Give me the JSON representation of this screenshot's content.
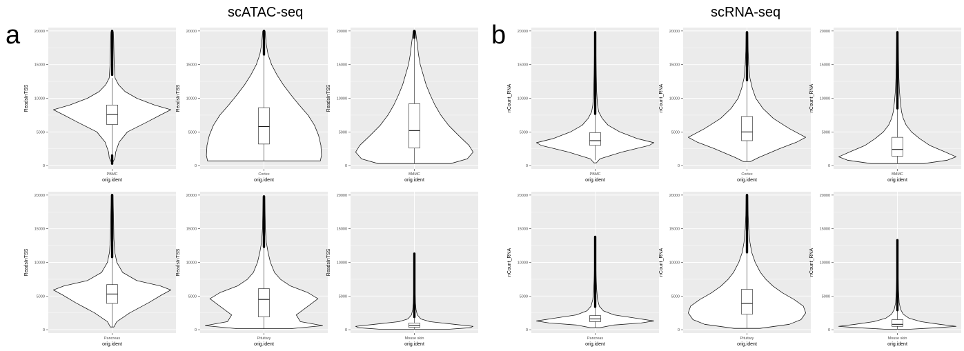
{
  "panels": [
    {
      "letter": "a",
      "title": "scATAC-seq"
    },
    {
      "letter": "b",
      "title": "scRNA-seq"
    }
  ],
  "colors": {
    "panel_bg": "#ebebeb",
    "grid": "#ffffff",
    "violin_fill": "#ffffff",
    "outline": "#1a1a1a",
    "text": "#4d4d4d"
  },
  "chart_data": [
    {
      "type": "violin",
      "panel": "a",
      "xlabel": "orig.ident",
      "ylabel": "ReadsInTSS",
      "categories": [
        "PBMC"
      ],
      "yticks": [
        0,
        5000,
        10000,
        15000,
        20000
      ],
      "ylim": [
        -500,
        20500
      ],
      "box": {
        "q1": 6100,
        "median": 7600,
        "q3": 9000,
        "whisker_low": 1700,
        "whisker_high": 13000
      },
      "density": [
        [
          600,
          0.02
        ],
        [
          1200,
          0.05
        ],
        [
          2000,
          0.06
        ],
        [
          3500,
          0.12
        ],
        [
          5000,
          0.26
        ],
        [
          6500,
          0.6
        ],
        [
          7500,
          0.82
        ],
        [
          8300,
          1.0
        ],
        [
          9000,
          0.72
        ],
        [
          10000,
          0.42
        ],
        [
          11000,
          0.22
        ],
        [
          12000,
          0.11
        ],
        [
          13000,
          0.05
        ],
        [
          15000,
          0.035
        ],
        [
          17000,
          0.03
        ],
        [
          19000,
          0.025
        ],
        [
          19900,
          0.02
        ]
      ],
      "outliers": [
        [
          13500,
          20000
        ],
        [
          300,
          1500
        ]
      ]
    },
    {
      "type": "violin",
      "panel": "a",
      "xlabel": "orig.ident",
      "ylabel": "ReadsInTSS",
      "categories": [
        "Cortex"
      ],
      "yticks": [
        0,
        5000,
        10000,
        15000,
        20000
      ],
      "ylim": [
        -500,
        20500
      ],
      "box": {
        "q1": 3200,
        "median": 5800,
        "q3": 8600,
        "whisker_low": 700,
        "whisker_high": 16500
      },
      "density": [
        [
          700,
          0.96
        ],
        [
          1500,
          0.98
        ],
        [
          3000,
          0.97
        ],
        [
          4500,
          0.93
        ],
        [
          6000,
          0.86
        ],
        [
          7500,
          0.75
        ],
        [
          9000,
          0.6
        ],
        [
          10500,
          0.46
        ],
        [
          12000,
          0.33
        ],
        [
          13500,
          0.22
        ],
        [
          15000,
          0.13
        ],
        [
          16500,
          0.07
        ],
        [
          18000,
          0.04
        ],
        [
          20000,
          0.02
        ]
      ],
      "outliers": [
        [
          16500,
          20000
        ]
      ]
    },
    {
      "type": "violin",
      "panel": "a",
      "xlabel": "orig.ident",
      "ylabel": "ReadsInTSS",
      "categories": [
        "BMMC"
      ],
      "yticks": [
        0,
        5000,
        10000,
        15000,
        20000
      ],
      "ylim": [
        -500,
        20500
      ],
      "box": {
        "q1": 2600,
        "median": 5200,
        "q3": 9200,
        "whisker_low": 300,
        "whisker_high": 19000
      },
      "density": [
        [
          300,
          0.62
        ],
        [
          1000,
          0.9
        ],
        [
          2000,
          1.0
        ],
        [
          3000,
          0.93
        ],
        [
          4500,
          0.75
        ],
        [
          6000,
          0.58
        ],
        [
          7500,
          0.45
        ],
        [
          9000,
          0.35
        ],
        [
          10500,
          0.27
        ],
        [
          12000,
          0.2
        ],
        [
          13500,
          0.15
        ],
        [
          15000,
          0.1
        ],
        [
          16500,
          0.07
        ],
        [
          18000,
          0.05
        ],
        [
          19000,
          0.035
        ],
        [
          20000,
          0.02
        ]
      ],
      "outliers": [
        [
          19000,
          20000
        ]
      ]
    },
    {
      "type": "violin",
      "panel": "b",
      "xlabel": "orig.ident",
      "ylabel": "nCount_RNA",
      "categories": [
        "PBMC"
      ],
      "yticks": [
        0,
        5000,
        10000,
        15000,
        20000
      ],
      "ylim": [
        -500,
        20500
      ],
      "box": {
        "q1": 3000,
        "median": 3700,
        "q3": 4900,
        "whisker_low": 800,
        "whisker_high": 7700
      },
      "density": [
        [
          400,
          0.02
        ],
        [
          1000,
          0.08
        ],
        [
          2000,
          0.45
        ],
        [
          3000,
          0.92
        ],
        [
          3400,
          1.0
        ],
        [
          4000,
          0.72
        ],
        [
          5000,
          0.42
        ],
        [
          6000,
          0.22
        ],
        [
          7000,
          0.12
        ],
        [
          8000,
          0.06
        ],
        [
          9000,
          0.04
        ],
        [
          11000,
          0.025
        ],
        [
          13000,
          0.02
        ],
        [
          15000,
          0.015
        ],
        [
          17000,
          0.012
        ],
        [
          19800,
          0.01
        ]
      ],
      "outliers": [
        [
          7700,
          19800
        ]
      ]
    },
    {
      "type": "violin",
      "panel": "b",
      "xlabel": "orig.ident",
      "ylabel": "nCount_RNA",
      "categories": [
        "Cortex"
      ],
      "yticks": [
        0,
        5000,
        10000,
        15000,
        20000
      ],
      "ylim": [
        -500,
        20500
      ],
      "box": {
        "q1": 3700,
        "median": 5000,
        "q3": 7300,
        "whisker_low": 600,
        "whisker_high": 12700
      },
      "density": [
        [
          600,
          0.06
        ],
        [
          1200,
          0.2
        ],
        [
          2500,
          0.55
        ],
        [
          3500,
          0.85
        ],
        [
          4200,
          1.0
        ],
        [
          5500,
          0.72
        ],
        [
          7000,
          0.45
        ],
        [
          8500,
          0.27
        ],
        [
          10000,
          0.15
        ],
        [
          11500,
          0.09
        ],
        [
          13000,
          0.05
        ],
        [
          15000,
          0.03
        ],
        [
          17000,
          0.02
        ],
        [
          19800,
          0.015
        ]
      ],
      "outliers": [
        [
          12700,
          19800
        ]
      ]
    },
    {
      "type": "violin",
      "panel": "b",
      "xlabel": "orig.ident",
      "ylabel": "nCount_RNA",
      "categories": [
        "BMMC"
      ],
      "yticks": [
        0,
        5000,
        10000,
        15000,
        20000
      ],
      "ylim": [
        -500,
        20500
      ],
      "box": {
        "q1": 1400,
        "median": 2400,
        "q3": 4200,
        "whisker_low": 300,
        "whisker_high": 8500
      },
      "density": [
        [
          300,
          0.45
        ],
        [
          800,
          0.85
        ],
        [
          1300,
          1.0
        ],
        [
          2000,
          0.82
        ],
        [
          3000,
          0.55
        ],
        [
          4000,
          0.38
        ],
        [
          5000,
          0.24
        ],
        [
          6000,
          0.15
        ],
        [
          7000,
          0.1
        ],
        [
          8000,
          0.07
        ],
        [
          9500,
          0.05
        ],
        [
          11000,
          0.035
        ],
        [
          13000,
          0.025
        ],
        [
          16000,
          0.018
        ],
        [
          19800,
          0.012
        ]
      ],
      "outliers": [
        [
          8500,
          19800
        ]
      ]
    },
    {
      "type": "violin",
      "panel": "a",
      "xlabel": "orig.ident",
      "ylabel": "ReadsInTSS",
      "categories": [
        "Pancreas"
      ],
      "yticks": [
        0,
        5000,
        10000,
        15000,
        20000
      ],
      "ylim": [
        -500,
        20500
      ],
      "box": {
        "q1": 3900,
        "median": 5300,
        "q3": 6700,
        "whisker_low": 400,
        "whisker_high": 10800
      },
      "density": [
        [
          400,
          0.03
        ],
        [
          1200,
          0.08
        ],
        [
          2500,
          0.3
        ],
        [
          4000,
          0.62
        ],
        [
          5200,
          0.85
        ],
        [
          5900,
          1.0
        ],
        [
          6500,
          0.82
        ],
        [
          7300,
          0.42
        ],
        [
          8500,
          0.18
        ],
        [
          10000,
          0.08
        ],
        [
          11500,
          0.045
        ],
        [
          13500,
          0.03
        ],
        [
          16000,
          0.025
        ],
        [
          18000,
          0.02
        ],
        [
          20000,
          0.015
        ]
      ],
      "outliers": [
        [
          10800,
          20000
        ]
      ]
    },
    {
      "type": "violin",
      "panel": "a",
      "xlabel": "orig.ident",
      "ylabel": "ReadsInTSS",
      "categories": [
        "Pituitary"
      ],
      "yticks": [
        0,
        5000,
        10000,
        15000,
        20000
      ],
      "ylim": [
        -500,
        20500
      ],
      "box": {
        "q1": 1900,
        "median": 4500,
        "q3": 6100,
        "whisker_low": 150,
        "whisker_high": 12300
      },
      "density": [
        [
          150,
          0.45
        ],
        [
          600,
          1.0
        ],
        [
          1200,
          0.62
        ],
        [
          2200,
          0.55
        ],
        [
          3300,
          0.72
        ],
        [
          4600,
          0.92
        ],
        [
          5500,
          0.75
        ],
        [
          6500,
          0.45
        ],
        [
          7500,
          0.28
        ],
        [
          8500,
          0.18
        ],
        [
          10000,
          0.11
        ],
        [
          11500,
          0.07
        ],
        [
          13000,
          0.04
        ],
        [
          15000,
          0.025
        ],
        [
          17000,
          0.02
        ],
        [
          19800,
          0.015
        ]
      ],
      "outliers": [
        [
          12300,
          19800
        ]
      ]
    },
    {
      "type": "violin",
      "panel": "a",
      "xlabel": "orig.ident",
      "ylabel": "ReadsInTSS",
      "categories": [
        "Mouse skin"
      ],
      "yticks": [
        0,
        5000,
        10000,
        15000,
        20000
      ],
      "ylim": [
        -500,
        20500
      ],
      "box": {
        "q1": 350,
        "median": 600,
        "q3": 1000,
        "whisker_low": 80,
        "whisker_high": 1900
      },
      "density": [
        [
          80,
          0.6
        ],
        [
          300,
          0.95
        ],
        [
          500,
          1.0
        ],
        [
          800,
          0.68
        ],
        [
          1200,
          0.26
        ],
        [
          1600,
          0.11
        ],
        [
          2200,
          0.05
        ],
        [
          3000,
          0.028
        ],
        [
          4000,
          0.018
        ],
        [
          5500,
          0.012
        ],
        [
          7500,
          0.008
        ],
        [
          9500,
          0.006
        ],
        [
          11300,
          0.004
        ]
      ],
      "outliers": [
        [
          1900,
          11300
        ]
      ]
    },
    {
      "type": "violin",
      "panel": "b",
      "xlabel": "orig.ident",
      "ylabel": "nCount_RNA",
      "categories": [
        "Pancreas"
      ],
      "yticks": [
        0,
        5000,
        10000,
        15000,
        20000
      ],
      "ylim": [
        -500,
        20500
      ],
      "box": {
        "q1": 1200,
        "median": 1600,
        "q3": 2100,
        "whisker_low": 300,
        "whisker_high": 3400
      },
      "density": [
        [
          300,
          0.08
        ],
        [
          700,
          0.32
        ],
        [
          1000,
          0.78
        ],
        [
          1300,
          1.0
        ],
        [
          1700,
          0.7
        ],
        [
          2200,
          0.32
        ],
        [
          2800,
          0.14
        ],
        [
          3500,
          0.07
        ],
        [
          4500,
          0.04
        ],
        [
          6000,
          0.025
        ],
        [
          8000,
          0.015
        ],
        [
          10000,
          0.01
        ],
        [
          12000,
          0.008
        ],
        [
          13800,
          0.006
        ]
      ],
      "outliers": [
        [
          3400,
          13800
        ]
      ]
    },
    {
      "type": "violin",
      "panel": "b",
      "xlabel": "orig.ident",
      "ylabel": "nCount_RNA",
      "categories": [
        "Pituitary"
      ],
      "yticks": [
        0,
        5000,
        10000,
        15000,
        20000
      ],
      "ylim": [
        -500,
        20500
      ],
      "box": {
        "q1": 2300,
        "median": 3900,
        "q3": 6000,
        "whisker_low": 200,
        "whisker_high": 11500
      },
      "density": [
        [
          200,
          0.22
        ],
        [
          800,
          0.72
        ],
        [
          1500,
          0.92
        ],
        [
          2500,
          1.0
        ],
        [
          3500,
          0.96
        ],
        [
          4500,
          0.8
        ],
        [
          5500,
          0.6
        ],
        [
          6500,
          0.44
        ],
        [
          7500,
          0.32
        ],
        [
          8500,
          0.23
        ],
        [
          10000,
          0.14
        ],
        [
          11500,
          0.08
        ],
        [
          13000,
          0.05
        ],
        [
          15000,
          0.03
        ],
        [
          17000,
          0.02
        ],
        [
          20000,
          0.015
        ]
      ],
      "outliers": [
        [
          11500,
          20000
        ]
      ]
    },
    {
      "type": "violin",
      "panel": "b",
      "xlabel": "orig.ident",
      "ylabel": "nCount_RNA",
      "categories": [
        "Mouse skin"
      ],
      "yticks": [
        0,
        5000,
        10000,
        15000,
        20000
      ],
      "ylim": [
        -500,
        20500
      ],
      "box": {
        "q1": 500,
        "median": 800,
        "q3": 1500,
        "whisker_low": 80,
        "whisker_high": 2900
      },
      "density": [
        [
          80,
          0.22
        ],
        [
          300,
          0.68
        ],
        [
          500,
          1.0
        ],
        [
          800,
          0.72
        ],
        [
          1200,
          0.4
        ],
        [
          1700,
          0.2
        ],
        [
          2300,
          0.1
        ],
        [
          3000,
          0.055
        ],
        [
          4000,
          0.03
        ],
        [
          6000,
          0.018
        ],
        [
          8000,
          0.012
        ],
        [
          10500,
          0.008
        ],
        [
          13300,
          0.005
        ]
      ],
      "outliers": [
        [
          2900,
          13300
        ]
      ]
    }
  ]
}
